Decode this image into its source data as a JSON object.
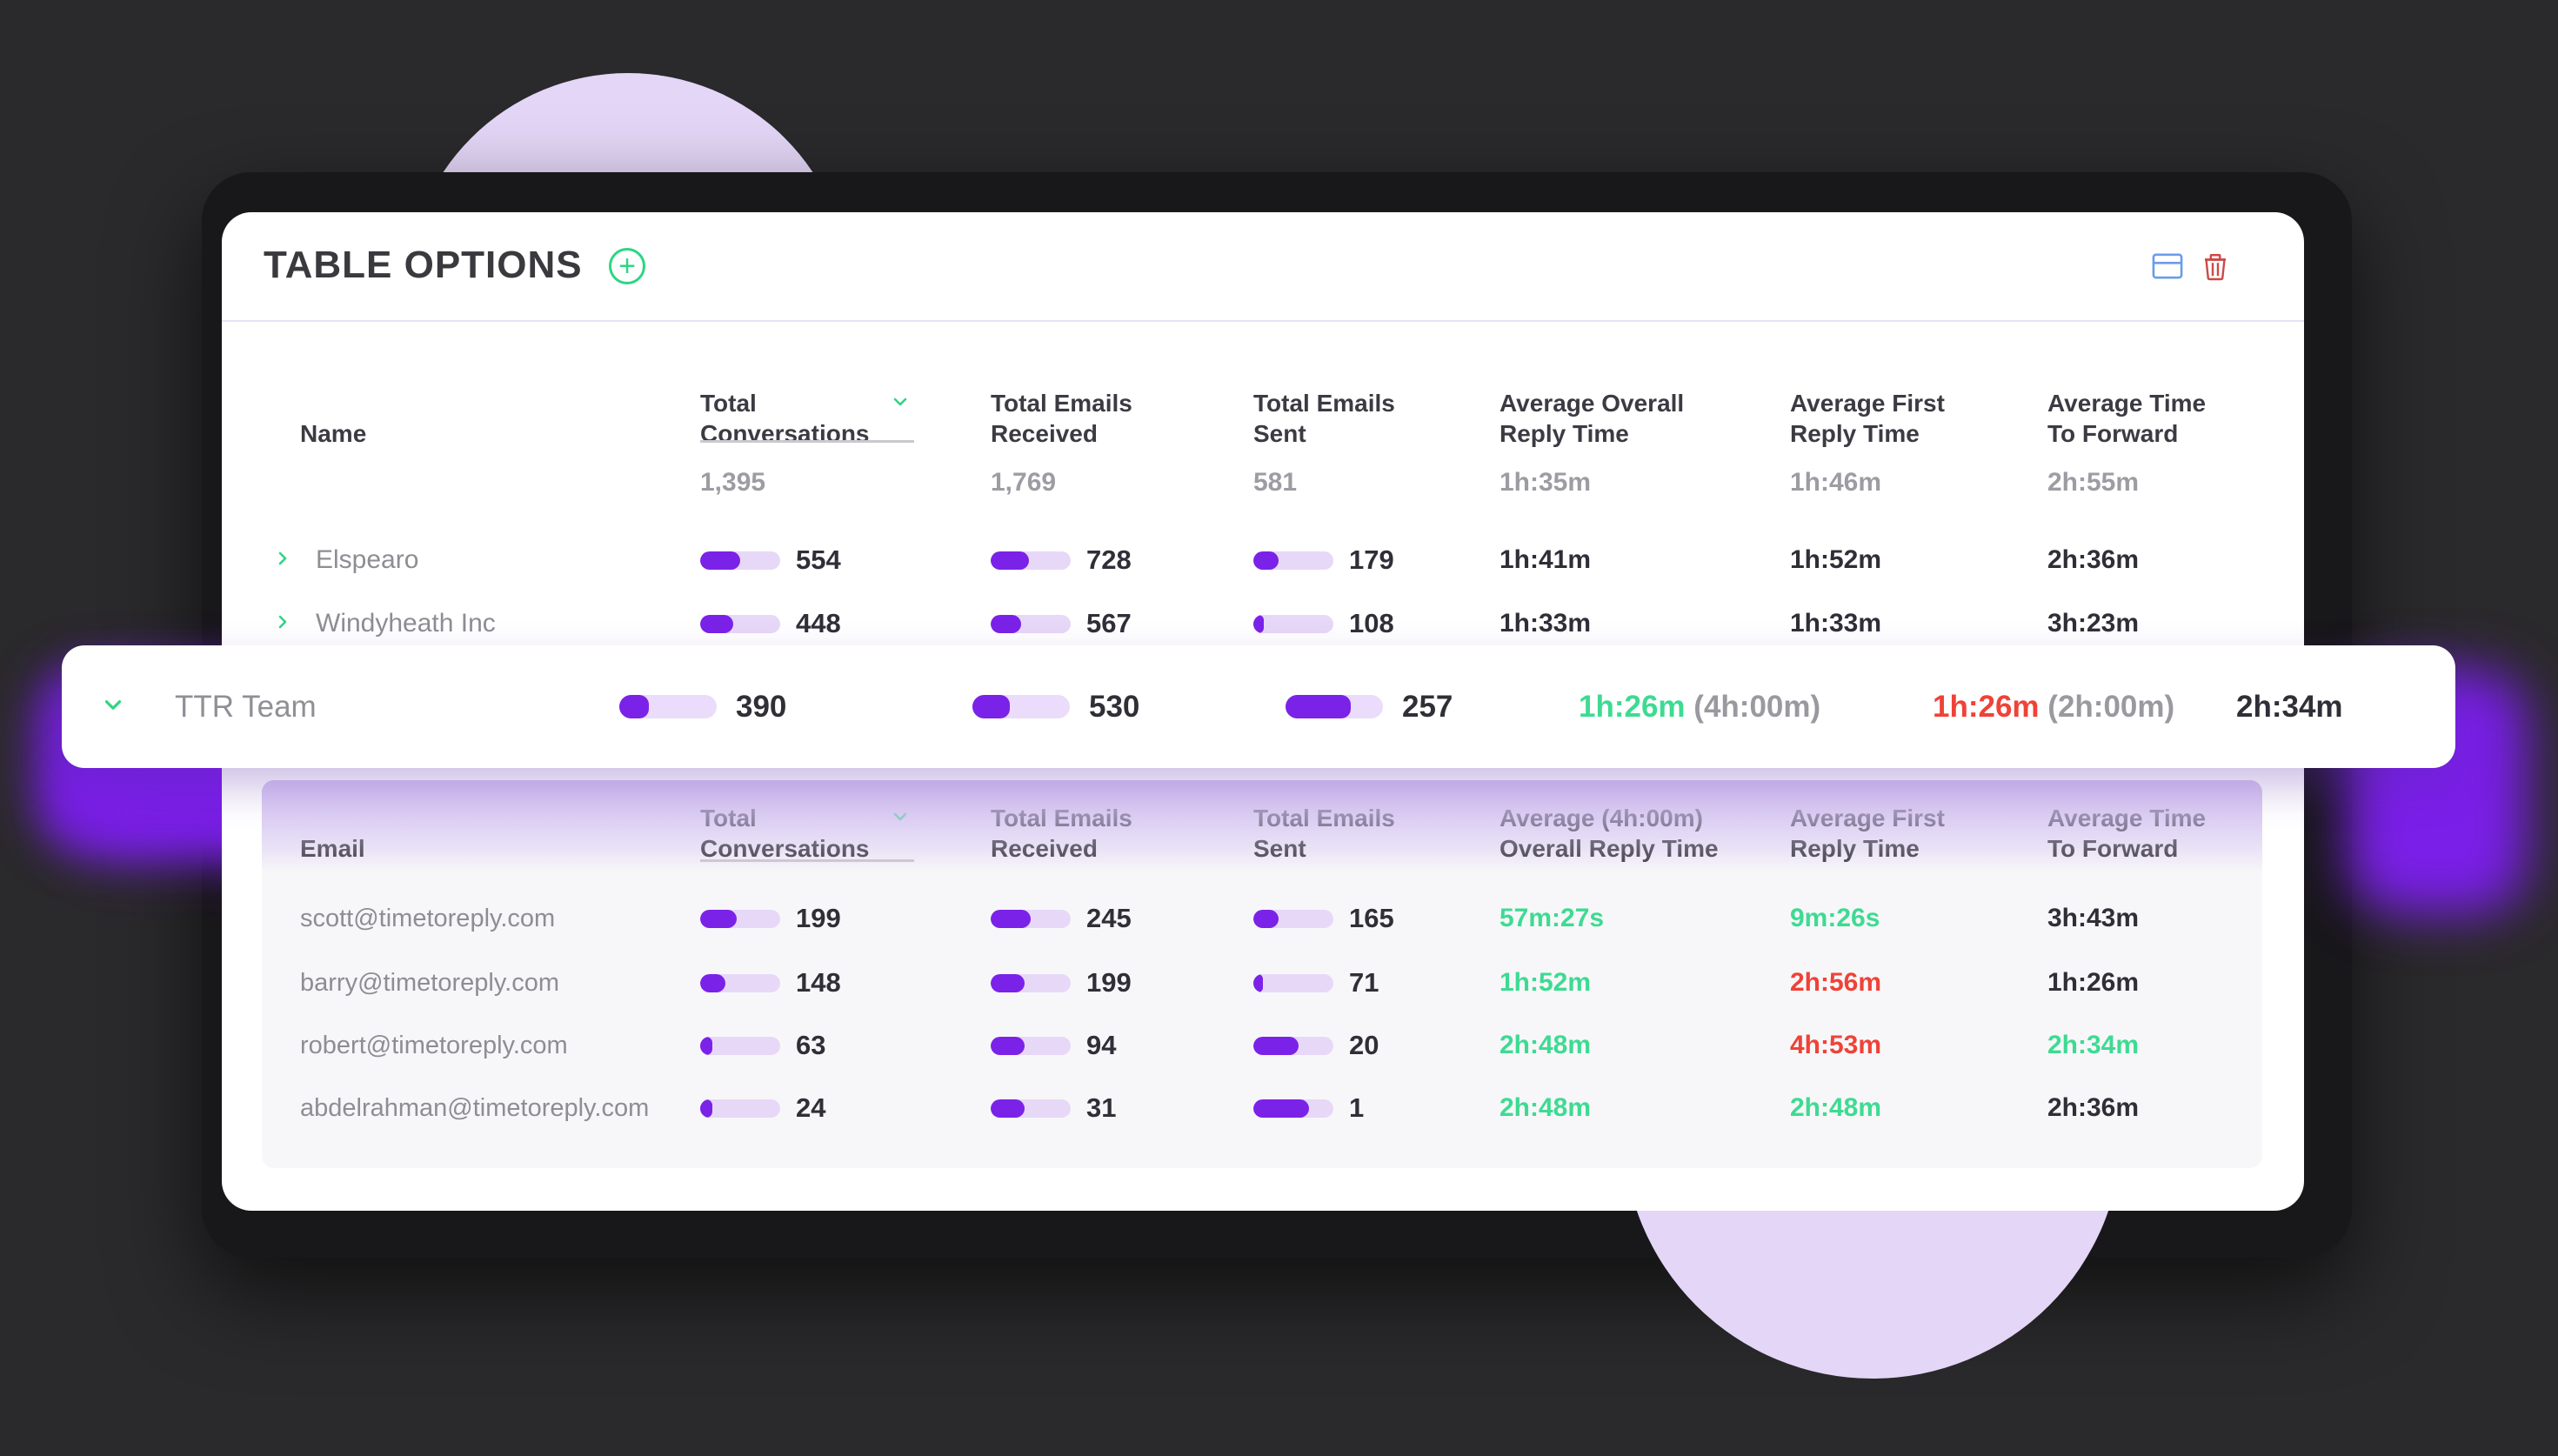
{
  "title": "TABLE OPTIONS",
  "header_icons": {
    "plus": "+",
    "table_layout": "table-layout-icon",
    "trash": "trash-icon"
  },
  "colors": {
    "background": "#2a292b",
    "frame": "#18171a",
    "card": "#ffffff",
    "lavender_circle": "#e3d6f6",
    "accent_green": "#2fd583",
    "time_green": "#3ddb92",
    "time_red": "#f04237",
    "bar_purple": "#7b22e8",
    "bar_track": "#e7d8f8",
    "glow_purple": "#7a1fe8",
    "text_dark": "#302f38",
    "text_gray": "#8d8d94",
    "text_muted": "#9c9ca3",
    "blue_icon": "#6d9bea",
    "trash_red": "#cc4946",
    "sub_bg": "#f7f7f9"
  },
  "main_header": {
    "name": "Name",
    "c1a": "Total",
    "c1b": "Conversations",
    "c2a": "Total Emails",
    "c2b": "Received",
    "c3a": "Total Emails",
    "c3b": "Sent",
    "c4a": "Average Overall",
    "c4b": "Reply Time",
    "c5a": "Average First",
    "c5b": "Reply Time",
    "c6a": "Average Time",
    "c6b": "To Forward"
  },
  "totals": {
    "conversations": "1,395",
    "received": "1,769",
    "sent": "581",
    "overall": "1h:35m",
    "first": "1h:46m",
    "forward": "2h:55m"
  },
  "rows": [
    {
      "name": "Elspearo",
      "conversations": "554",
      "conv_fill": "50%",
      "received": "728",
      "recv_fill": "48%",
      "sent": "179",
      "sent_fill": "32%",
      "overall": "1h:41m",
      "first": "1h:52m",
      "forward": "2h:36m"
    },
    {
      "name": "Windyheath Inc",
      "conversations": "448",
      "conv_fill": "41%",
      "received": "567",
      "recv_fill": "38%",
      "sent": "108",
      "sent_fill": "13%",
      "overall": "1h:33m",
      "first": "1h:33m",
      "forward": "3h:23m"
    }
  ],
  "ttr_row": {
    "name": "TTR Team",
    "conversations": "390",
    "conv_fill": "30%",
    "received": "530",
    "recv_fill": "38%",
    "sent": "257",
    "sent_fill": "67%",
    "overall": "1h:26m",
    "overall_target": "(4h:00m)",
    "first": "1h:26m",
    "first_target": "(2h:00m)",
    "forward": "2h:34m"
  },
  "sub_header": {
    "email": "Email",
    "c1a": "Total",
    "c1b": "Conversations",
    "c2a": "Total Emails",
    "c2b": "Received",
    "c3a": "Total Emails",
    "c3b": "Sent",
    "c4a": "Average (4h:00m)",
    "c4b": "Overall Reply Time",
    "c5a": "Average First",
    "c5b": "Reply Time",
    "c6a": "Average Time",
    "c6b": "To Forward"
  },
  "sub_rows": [
    {
      "email": "scott@timetoreply.com",
      "conversations": "199",
      "conv_fill": "46%",
      "received": "245",
      "recv_fill": "50%",
      "sent": "165",
      "sent_fill": "31%",
      "overall": "57m:27s",
      "overall_color": "green",
      "first": "9m:26s",
      "first_color": "green",
      "forward": "3h:43m",
      "forward_color": "dark"
    },
    {
      "email": "barry@timetoreply.com",
      "conversations": "148",
      "conv_fill": "31%",
      "received": "199",
      "recv_fill": "42%",
      "sent": "71",
      "sent_fill": "12%",
      "overall": "1h:52m",
      "overall_color": "green",
      "first": "2h:56m",
      "first_color": "red",
      "forward": "1h:26m",
      "forward_color": "dark"
    },
    {
      "email": "robert@timetoreply.com",
      "conversations": "63",
      "conv_fill": "15%",
      "received": "94",
      "recv_fill": "42%",
      "sent": "20",
      "sent_fill": "56%",
      "overall": "2h:48m",
      "overall_color": "green",
      "first": "4h:53m",
      "first_color": "red",
      "forward": "2h:34m",
      "forward_color": "green"
    },
    {
      "email": "abdelrahman@timetoreply.com",
      "conversations": "24",
      "conv_fill": "15%",
      "received": "31",
      "recv_fill": "42%",
      "sent": "1",
      "sent_fill": "70%",
      "overall": "2h:48m",
      "overall_color": "green",
      "first": "2h:48m",
      "first_color": "green",
      "forward": "2h:36m",
      "forward_color": "dark"
    }
  ]
}
